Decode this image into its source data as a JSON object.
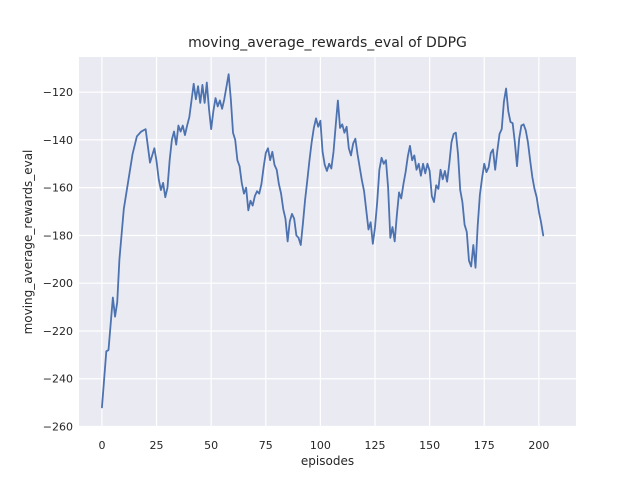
{
  "figure": {
    "title": "moving_average_rewards_eval of DDPG",
    "xlabel": "episodes",
    "ylabel": "moving_average_rewards_eval"
  },
  "chart_data": {
    "type": "line",
    "title": "moving_average_rewards_eval of DDPG",
    "xlabel": "episodes",
    "ylabel": "moving_average_rewards_eval",
    "grid": true,
    "legend": "none",
    "xlim": [
      -10.5,
      217
    ],
    "ylim": [
      -260.2,
      -105.3
    ],
    "xticks": [
      0,
      25,
      50,
      75,
      100,
      125,
      150,
      175,
      200
    ],
    "yticks": [
      -120,
      -140,
      -160,
      -180,
      -200,
      -220,
      -240,
      -260
    ],
    "style": {
      "figure_bg": "#ffffff",
      "axes_bg": "#eaeaf2",
      "grid_color": "#ffffff",
      "text_color": "#262626",
      "line_color": "#4c72b0",
      "line_width": 1.8
    },
    "series": [
      {
        "name": "moving_average_rewards_eval",
        "color": "#4c72b0",
        "x": [
          0,
          2,
          3,
          5,
          6,
          7,
          8,
          10,
          12,
          14,
          16,
          18,
          20,
          22,
          24,
          25,
          26,
          27,
          28,
          29,
          30,
          31,
          32,
          33,
          34,
          35,
          36,
          37,
          38,
          39,
          40,
          42,
          43,
          44,
          45,
          46,
          47,
          48,
          49,
          50,
          51,
          52,
          53,
          54,
          55,
          56,
          58,
          59,
          60,
          61,
          62,
          63,
          64,
          65,
          66,
          67,
          68,
          69,
          70,
          71,
          72,
          73,
          74,
          75,
          76,
          77,
          78,
          79,
          80,
          81,
          82,
          83,
          84,
          85,
          86,
          87,
          88,
          89,
          90,
          91,
          92,
          93,
          94,
          95,
          96,
          97,
          98,
          99,
          100,
          101,
          102,
          103,
          104,
          105,
          106,
          107,
          108,
          109,
          110,
          111,
          112,
          113,
          114,
          115,
          116,
          117,
          118,
          119,
          120,
          121,
          122,
          123,
          124,
          125,
          126,
          127,
          128,
          129,
          130,
          131,
          132,
          133,
          134,
          135,
          136,
          137,
          138,
          139,
          140,
          141,
          142,
          143,
          144,
          145,
          146,
          147,
          148,
          149,
          150,
          151,
          152,
          153,
          154,
          155,
          156,
          157,
          158,
          159,
          160,
          161,
          162,
          163,
          164,
          165,
          166,
          167,
          168,
          169,
          170,
          171,
          172,
          173,
          174,
          175,
          176,
          177,
          178,
          179,
          180,
          181,
          182,
          183,
          184,
          185,
          186,
          187,
          188,
          189,
          190,
          191,
          192,
          193,
          194,
          195,
          196,
          197,
          198,
          199,
          200,
          201,
          202
        ],
        "y": [
          -252,
          -228.5,
          -228,
          -206,
          -214,
          -208,
          -190,
          -169,
          -157.5,
          -146,
          -138.5,
          -136.5,
          -135.5,
          -149.5,
          -143.5,
          -149,
          -156.5,
          -161,
          -158,
          -164,
          -160,
          -148.5,
          -140,
          -136.5,
          -142,
          -134,
          -136.5,
          -134,
          -138,
          -134,
          -130.5,
          -116.5,
          -123,
          -117.5,
          -124.5,
          -117,
          -124.5,
          -116,
          -127,
          -135.5,
          -128,
          -122.5,
          -126,
          -123.5,
          -127,
          -123,
          -112.5,
          -123,
          -137,
          -140,
          -148.5,
          -151,
          -158,
          -162.5,
          -160,
          -169.5,
          -165.5,
          -167.5,
          -163.5,
          -161.5,
          -162.5,
          -158.5,
          -151.5,
          -145.5,
          -143.5,
          -148.5,
          -145,
          -150.5,
          -152.5,
          -158.5,
          -162.5,
          -169,
          -173,
          -182.5,
          -174,
          -171,
          -173,
          -180,
          -181,
          -184,
          -175,
          -165,
          -157,
          -148.5,
          -141,
          -135,
          -131,
          -134.5,
          -132,
          -145,
          -150.5,
          -153,
          -150,
          -152,
          -145,
          -134,
          -123.5,
          -135,
          -133.5,
          -137,
          -134.5,
          -143.5,
          -146.5,
          -141.5,
          -139.5,
          -146,
          -151.5,
          -157,
          -161.5,
          -169.5,
          -177.5,
          -174.5,
          -183.5,
          -176.5,
          -166,
          -152.5,
          -147.5,
          -150,
          -148.5,
          -160,
          -181,
          -176.5,
          -182.5,
          -171.5,
          -162,
          -164.5,
          -158.5,
          -153.5,
          -147,
          -142.5,
          -148.5,
          -146.5,
          -152.5,
          -150,
          -155,
          -150,
          -154,
          -150,
          -153,
          -163.5,
          -166,
          -159,
          -160.5,
          -152.5,
          -156.5,
          -153,
          -157.5,
          -150,
          -141,
          -137.5,
          -137,
          -146,
          -161,
          -166,
          -175.5,
          -178.5,
          -190.5,
          -193,
          -184,
          -193.5,
          -176,
          -163,
          -156,
          -150,
          -153.5,
          -151.5,
          -145.5,
          -144,
          -152.5,
          -144.5,
          -137.5,
          -135.5,
          -124,
          -118.5,
          -128,
          -132.5,
          -133,
          -141,
          -151,
          -139.5,
          -134,
          -133.5,
          -136,
          -141,
          -148.5,
          -155.5,
          -160.5,
          -164,
          -170,
          -174.5,
          -180
        ]
      }
    ]
  }
}
